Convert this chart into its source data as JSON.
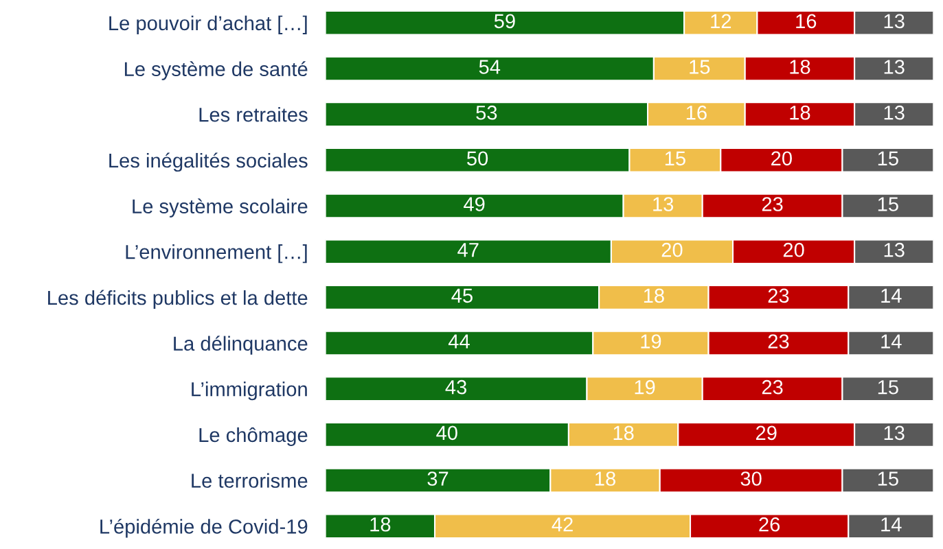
{
  "chart_data": {
    "type": "bar",
    "orientation": "horizontal",
    "stacked": true,
    "data_labels": true,
    "tick_labels": "y",
    "categories": [
      "Le pouvoir d’achat […]",
      "Le système de santé",
      "Les retraites",
      "Les inégalités sociales",
      "Le système scolaire",
      "L’environnement […]",
      "Les déficits publics et la dette",
      "La délinquance",
      "L’immigration",
      "Le chômage",
      "Le terrorisme",
      "L’épidémie de Covid-19"
    ],
    "series": [
      {
        "color": "#0e7012",
        "values": [
          59,
          54,
          53,
          50,
          49,
          47,
          45,
          44,
          43,
          40,
          37,
          18
        ]
      },
      {
        "color": "#f0be4a",
        "values": [
          12,
          15,
          16,
          15,
          13,
          20,
          18,
          19,
          19,
          18,
          18,
          42
        ]
      },
      {
        "color": "#c00000",
        "values": [
          16,
          18,
          18,
          20,
          23,
          20,
          23,
          23,
          23,
          29,
          30,
          26
        ]
      },
      {
        "color": "#595959",
        "values": [
          13,
          13,
          13,
          15,
          15,
          13,
          14,
          14,
          15,
          13,
          15,
          14
        ]
      }
    ]
  }
}
